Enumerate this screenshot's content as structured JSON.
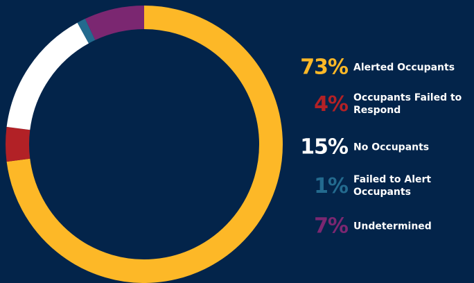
{
  "chart_data": {
    "type": "donut",
    "categories": [
      "Alerted Occupants",
      "Occupants Failed to Respond",
      "No Occupants",
      "Failed to Alert Occupants",
      "Undetermined"
    ],
    "values": [
      73,
      4,
      15,
      1,
      7
    ],
    "value_labels": [
      "73%",
      "4%",
      "15%",
      "1%",
      "7%"
    ],
    "colors": [
      "#fdb827",
      "#b22126",
      "#ffffff",
      "#236a8e",
      "#7b2771"
    ]
  }
}
